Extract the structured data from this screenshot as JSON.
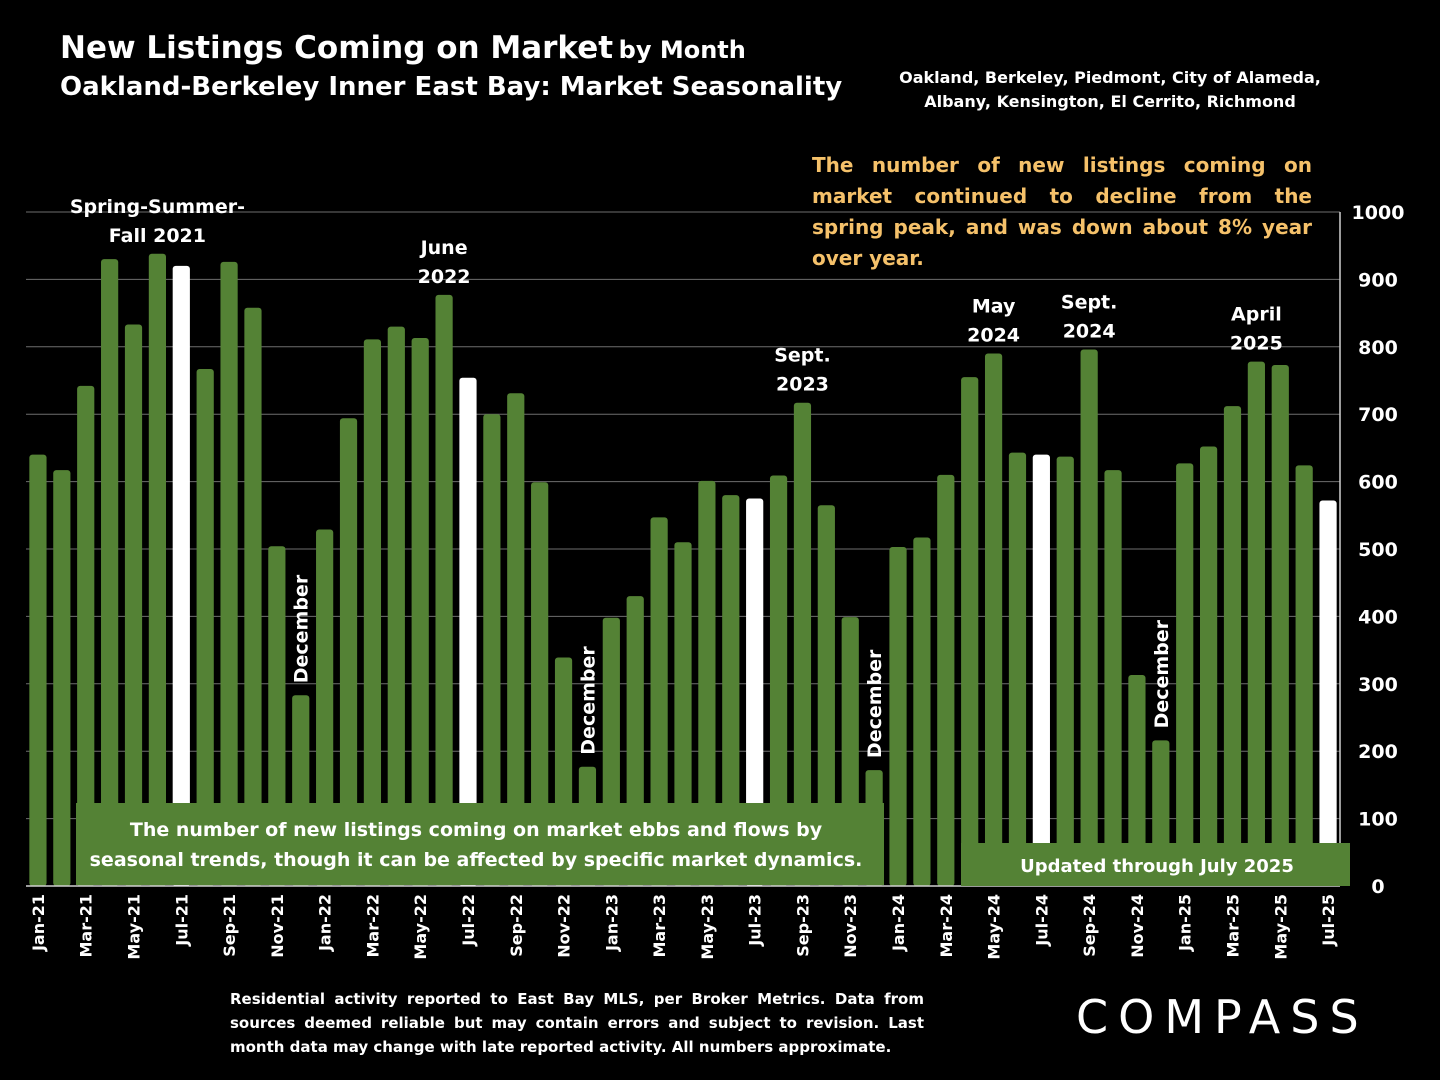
{
  "header": {
    "title_main": "New Listings Coming on Market",
    "title_by": "by Month",
    "subtitle": "Oakland-Berkeley Inner East Bay: Market Seasonality",
    "region_line1": "Oakland, Berkeley, Piedmont, City of Alameda,",
    "region_line2": "Albany, Kensington, El Cerrito, Richmond"
  },
  "callout": "The number of new listings coming on market continued to decline from the spring peak, and was down about 8% year over year.",
  "footnote": "Residential activity reported to East Bay MLS, per Broker Metrics. Data from sources deemed reliable but may contain errors and subject to revision. Last month data may change with late reported activity. All numbers approximate.",
  "logo": "COMPASS",
  "colors": {
    "bar": "#548235",
    "highlight": "#ffffff",
    "callout": "#f5c16a",
    "background": "#000000"
  },
  "chart_data": {
    "type": "bar",
    "title": "New Listings Coming on Market by Month",
    "xlabel": "",
    "ylabel": "",
    "ylim": [
      0,
      1000
    ],
    "yticks": [
      0,
      100,
      200,
      300,
      400,
      500,
      600,
      700,
      800,
      900,
      1000
    ],
    "y_axis_side": "right",
    "grid": true,
    "categories": [
      "Jan-21",
      "Feb-21",
      "Mar-21",
      "Apr-21",
      "May-21",
      "Jun-21",
      "Jul-21",
      "Aug-21",
      "Sep-21",
      "Oct-21",
      "Nov-21",
      "Dec-21",
      "Jan-22",
      "Feb-22",
      "Mar-22",
      "Apr-22",
      "May-22",
      "Jun-22",
      "Jul-22",
      "Aug-22",
      "Sep-22",
      "Oct-22",
      "Nov-22",
      "Dec-22",
      "Jan-23",
      "Feb-23",
      "Mar-23",
      "Apr-23",
      "May-23",
      "Jun-23",
      "Jul-23",
      "Aug-23",
      "Sep-23",
      "Oct-23",
      "Nov-23",
      "Dec-23",
      "Jan-24",
      "Feb-24",
      "Mar-24",
      "Apr-24",
      "May-24",
      "Jun-24",
      "Jul-24",
      "Aug-24",
      "Sep-24",
      "Oct-24",
      "Nov-24",
      "Dec-24",
      "Jan-25",
      "Feb-25",
      "Mar-25",
      "Apr-25",
      "May-25",
      "Jun-25",
      "Jul-25"
    ],
    "tick_labels": [
      "Jan-21",
      "",
      "Mar-21",
      "",
      "May-21",
      "",
      "Jul-21",
      "",
      "Sep-21",
      "",
      "Nov-21",
      "",
      "Jan-22",
      "",
      "Mar-22",
      "",
      "May-22",
      "",
      "Jul-22",
      "",
      "Sep-22",
      "",
      "Nov-22",
      "",
      "Jan-23",
      "",
      "Mar-23",
      "",
      "May-23",
      "",
      "Jul-23",
      "",
      "Sep-23",
      "",
      "Nov-23",
      "",
      "Jan-24",
      "",
      "Mar-24",
      "",
      "May-24",
      "",
      "Jul-24",
      "",
      "Sep-24",
      "",
      "Nov-24",
      "",
      "Jan-25",
      "",
      "Mar-25",
      "",
      "May-25",
      "",
      "Jul-25"
    ],
    "values": [
      640,
      617,
      742,
      930,
      833,
      938,
      920,
      767,
      926,
      858,
      504,
      283,
      529,
      694,
      811,
      830,
      813,
      877,
      754,
      700,
      731,
      599,
      339,
      177,
      398,
      430,
      547,
      510,
      601,
      580,
      575,
      609,
      717,
      565,
      399,
      172,
      503,
      517,
      610,
      755,
      790,
      643,
      640,
      637,
      796,
      617,
      313,
      216,
      627,
      652,
      712,
      778,
      773,
      624,
      572
    ],
    "highlighted": [
      "Jul-21",
      "Jul-22",
      "Jul-23",
      "Jul-24",
      "Jul-25"
    ],
    "annotations": [
      {
        "category": "Jun-21",
        "lines": [
          "Spring-Summer-",
          "Fall  2021"
        ]
      },
      {
        "category": "Dec-21",
        "lines": [
          "December"
        ],
        "vertical": true
      },
      {
        "category": "Jun-22",
        "lines": [
          "June",
          "2022"
        ]
      },
      {
        "category": "Dec-22",
        "lines": [
          "December"
        ],
        "vertical": true
      },
      {
        "category": "Sep-23",
        "lines": [
          "Sept.",
          "2023"
        ]
      },
      {
        "category": "Dec-23",
        "lines": [
          "December"
        ],
        "vertical": true
      },
      {
        "category": "May-24",
        "lines": [
          "May",
          "2024"
        ]
      },
      {
        "category": "Sep-24",
        "lines": [
          "Sept.",
          "2024"
        ]
      },
      {
        "category": "Dec-24",
        "lines": [
          "December"
        ],
        "vertical": true
      },
      {
        "category": "Apr-25",
        "lines": [
          "April",
          "2025"
        ]
      }
    ],
    "note_boxes": [
      {
        "id": "seasonal",
        "text_line1": "The number of new listings coming on market ebbs and flows by",
        "text_line2": "seasonal trends, though it can be affected by specific market dynamics."
      },
      {
        "id": "updated",
        "text": "Updated through July 2025"
      }
    ]
  }
}
